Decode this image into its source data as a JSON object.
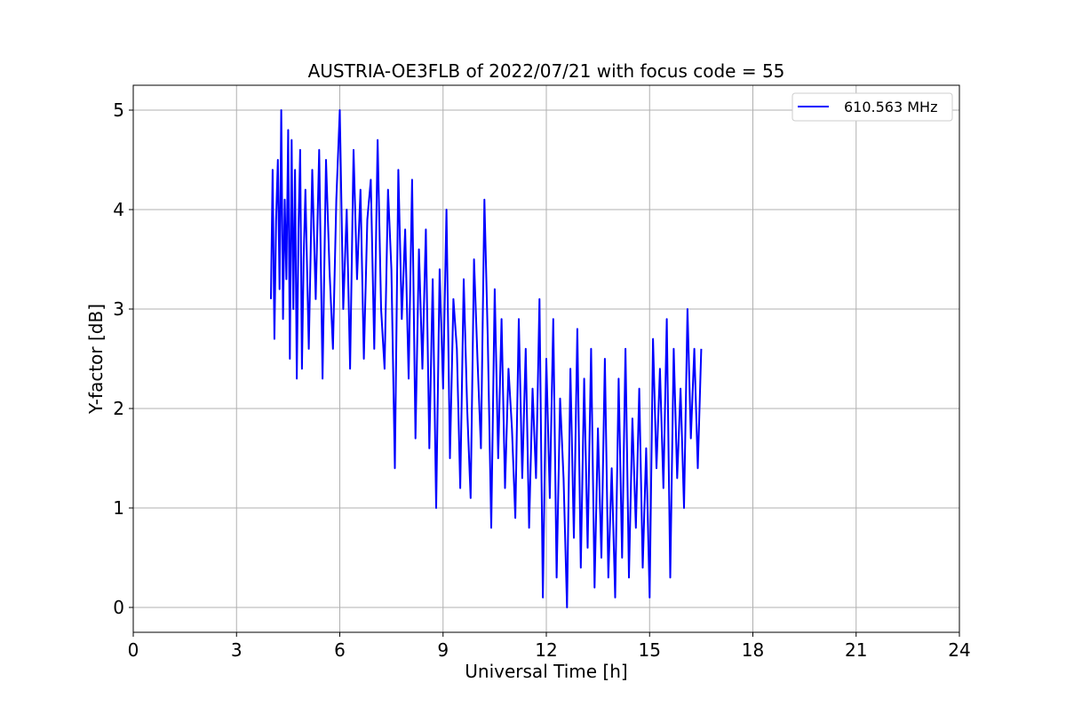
{
  "chart_data": {
    "type": "line",
    "title": "AUSTRIA-OE3FLB of 2022/07/21 with focus code = 55",
    "xlabel": "Universal Time [h]",
    "ylabel": "Y-factor [dB]",
    "xlim": [
      0,
      24
    ],
    "ylim": [
      -0.25,
      5.25
    ],
    "xticks": [
      0,
      3,
      6,
      9,
      12,
      15,
      18,
      21,
      24
    ],
    "xtick_labels": [
      "0",
      "3",
      "6",
      "9",
      "12",
      "15",
      "18",
      "21",
      "24"
    ],
    "yticks": [
      0,
      1,
      2,
      3,
      4,
      5
    ],
    "ytick_labels": [
      "0",
      "1",
      "2",
      "3",
      "4",
      "5"
    ],
    "grid": true,
    "legend_position": "top-right",
    "series": [
      {
        "name": "610.563 MHz",
        "color": "#0000ff",
        "x": [
          4.0,
          4.05,
          4.1,
          4.15,
          4.2,
          4.25,
          4.3,
          4.35,
          4.4,
          4.45,
          4.5,
          4.55,
          4.6,
          4.65,
          4.7,
          4.75,
          4.8,
          4.85,
          4.9,
          4.95,
          5.0,
          5.1,
          5.2,
          5.3,
          5.4,
          5.5,
          5.6,
          5.7,
          5.8,
          5.9,
          6.0,
          6.1,
          6.2,
          6.3,
          6.4,
          6.5,
          6.6,
          6.7,
          6.8,
          6.9,
          7.0,
          7.1,
          7.2,
          7.3,
          7.4,
          7.5,
          7.6,
          7.7,
          7.8,
          7.9,
          8.0,
          8.1,
          8.2,
          8.3,
          8.4,
          8.5,
          8.6,
          8.7,
          8.8,
          8.9,
          9.0,
          9.1,
          9.2,
          9.3,
          9.4,
          9.5,
          9.6,
          9.7,
          9.8,
          9.9,
          10.0,
          10.1,
          10.2,
          10.3,
          10.4,
          10.5,
          10.6,
          10.7,
          10.8,
          10.9,
          11.0,
          11.1,
          11.2,
          11.3,
          11.4,
          11.5,
          11.6,
          11.7,
          11.8,
          11.9,
          12.0,
          12.1,
          12.2,
          12.3,
          12.4,
          12.5,
          12.6,
          12.7,
          12.8,
          12.9,
          13.0,
          13.1,
          13.2,
          13.3,
          13.4,
          13.5,
          13.6,
          13.7,
          13.8,
          13.9,
          14.0,
          14.1,
          14.2,
          14.3,
          14.4,
          14.5,
          14.6,
          14.7,
          14.8,
          14.9,
          15.0,
          15.1,
          15.2,
          15.3,
          15.4,
          15.5,
          15.6,
          15.7,
          15.8,
          15.9,
          16.0,
          16.1,
          16.2,
          16.3,
          16.4,
          16.5
        ],
        "y": [
          3.1,
          4.4,
          2.7,
          3.9,
          4.5,
          3.2,
          5.0,
          2.9,
          4.1,
          3.3,
          4.8,
          2.5,
          4.7,
          3.0,
          4.4,
          2.3,
          3.8,
          4.6,
          2.4,
          3.5,
          4.2,
          2.6,
          4.4,
          3.1,
          4.6,
          2.3,
          4.5,
          3.4,
          2.6,
          4.1,
          5.0,
          3.0,
          4.0,
          2.4,
          4.6,
          3.3,
          4.2,
          2.5,
          3.9,
          4.3,
          2.6,
          4.7,
          3.0,
          2.4,
          4.2,
          3.4,
          1.4,
          4.4,
          2.9,
          3.8,
          2.3,
          4.3,
          1.7,
          3.6,
          2.4,
          3.8,
          1.6,
          3.3,
          1.0,
          3.4,
          2.2,
          4.0,
          1.5,
          3.1,
          2.6,
          1.2,
          3.3,
          2.0,
          1.1,
          3.5,
          2.5,
          1.6,
          4.1,
          2.7,
          0.8,
          3.2,
          1.5,
          2.9,
          1.2,
          2.4,
          1.8,
          0.9,
          2.9,
          1.3,
          2.6,
          0.8,
          2.2,
          1.3,
          3.1,
          0.1,
          2.5,
          1.1,
          2.9,
          0.3,
          2.1,
          1.3,
          0.0,
          2.4,
          0.7,
          2.8,
          0.4,
          2.3,
          0.6,
          2.6,
          0.2,
          1.8,
          0.5,
          2.5,
          0.3,
          1.4,
          0.1,
          2.3,
          0.5,
          2.6,
          0.3,
          1.9,
          0.8,
          2.2,
          0.4,
          1.6,
          0.1,
          2.7,
          1.4,
          2.4,
          1.2,
          2.9,
          0.3,
          2.6,
          1.3,
          2.2,
          1.0,
          3.0,
          1.7,
          2.6,
          1.4,
          2.6
        ]
      }
    ]
  }
}
